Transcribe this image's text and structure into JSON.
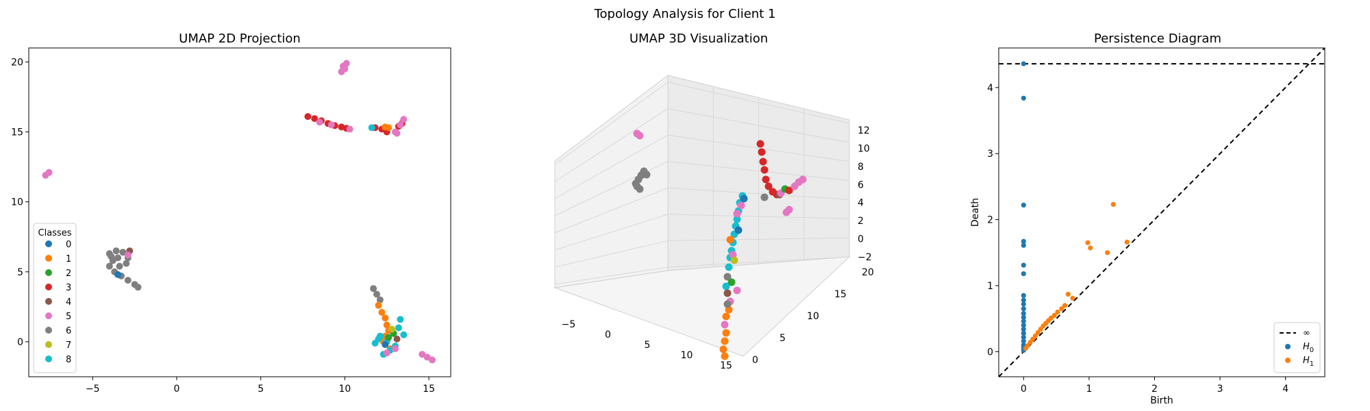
{
  "figure": {
    "suptitle": "Topology Analysis for Client 1",
    "class_colors": [
      "#1f77b4",
      "#ff7f0e",
      "#2ca02c",
      "#d62728",
      "#8c564b",
      "#e377c2",
      "#7f7f7f",
      "#bcbd22",
      "#17becf"
    ]
  },
  "chart_data": [
    {
      "type": "scatter",
      "title": "UMAP 2D Projection",
      "xlabel": "",
      "ylabel": "",
      "xlim": [
        -8.8,
        16.3
      ],
      "ylim": [
        -2.5,
        21.0
      ],
      "xticks": [
        -5,
        0,
        5,
        10,
        15
      ],
      "yticks": [
        0,
        5,
        10,
        15,
        20
      ],
      "xtick_labels": [
        "−5",
        "0",
        "5",
        "10",
        "15"
      ],
      "ytick_labels": [
        "0",
        "5",
        "10",
        "15",
        "20"
      ],
      "grid": false,
      "legend": {
        "title": "Classes",
        "placement": "lower-left",
        "labels": [
          "0",
          "1",
          "2",
          "3",
          "4",
          "5",
          "6",
          "7",
          "8"
        ]
      },
      "clusters": [
        {
          "class": 5,
          "x": [
            9.8,
            10.0,
            9.9,
            10.1
          ],
          "y": [
            19.3,
            19.5,
            19.7,
            19.9
          ]
        },
        {
          "class": 3,
          "x": [
            7.8,
            8.2,
            8.6,
            9.0,
            9.4,
            9.8,
            10.1
          ],
          "y": [
            16.1,
            15.95,
            15.8,
            15.6,
            15.45,
            15.35,
            15.25
          ]
        },
        {
          "class": 5,
          "x": [
            8.5,
            9.2,
            10.3
          ],
          "y": [
            15.7,
            15.5,
            15.2
          ]
        },
        {
          "class": 3,
          "x": [
            11.8,
            12.2,
            12.5,
            13.2,
            13.4
          ],
          "y": [
            15.3,
            15.2,
            15.0,
            15.4,
            15.6
          ]
        },
        {
          "class": 1,
          "x": [
            12.4,
            12.6
          ],
          "y": [
            15.35,
            15.3
          ]
        },
        {
          "class": 5,
          "x": [
            13.0,
            13.3,
            13.5,
            13.1
          ],
          "y": [
            15.0,
            15.5,
            15.9,
            14.9
          ]
        },
        {
          "class": 8,
          "x": [
            11.6
          ],
          "y": [
            15.3
          ]
        },
        {
          "class": 5,
          "x": [
            -7.8,
            -7.6
          ],
          "y": [
            11.9,
            12.1
          ]
        },
        {
          "class": 6,
          "x": [
            -4.0,
            -3.6,
            -3.2,
            -2.9,
            -3.0,
            -3.4,
            -3.8,
            -4.0,
            -3.7,
            -3.3,
            -2.9,
            -2.5,
            -2.3,
            -3.5,
            -3.9
          ],
          "y": [
            6.3,
            6.5,
            6.4,
            6.0,
            5.6,
            5.4,
            5.8,
            5.4,
            5.0,
            4.7,
            4.4,
            4.1,
            3.9,
            6.0,
            6.1
          ]
        },
        {
          "class": 4,
          "x": [
            -2.8
          ],
          "y": [
            6.5
          ]
        },
        {
          "class": 5,
          "x": [
            -2.9
          ],
          "y": [
            6.2
          ]
        },
        {
          "class": 0,
          "x": [
            -3.5
          ],
          "y": [
            4.8
          ]
        },
        {
          "class": 6,
          "x": [
            11.7,
            11.9,
            12.1
          ],
          "y": [
            3.8,
            3.4,
            3.0
          ]
        },
        {
          "class": 1,
          "x": [
            12.0,
            12.2,
            12.4,
            12.5,
            12.6,
            12.4,
            12.3,
            12.7
          ],
          "y": [
            2.6,
            2.1,
            1.7,
            1.2,
            0.8,
            0.4,
            0.0,
            -0.5
          ]
        },
        {
          "class": 8,
          "x": [
            11.8,
            12.1,
            12.5,
            12.9,
            13.2,
            13.5,
            12.7,
            13.0,
            12.3,
            13.3,
            12.0
          ],
          "y": [
            -0.1,
            0.4,
            0.0,
            0.6,
            1.0,
            0.5,
            -0.6,
            -0.3,
            -0.9,
            1.6,
            0.2
          ]
        },
        {
          "class": 2,
          "x": [
            12.6,
            12.9
          ],
          "y": [
            0.3,
            0.6
          ]
        },
        {
          "class": 4,
          "x": [
            13.1
          ],
          "y": [
            0.2
          ]
        },
        {
          "class": 7,
          "x": [
            12.8
          ],
          "y": [
            0.9
          ]
        },
        {
          "class": 0,
          "x": [
            12.4
          ],
          "y": [
            -0.2
          ]
        },
        {
          "class": 5,
          "x": [
            13.0,
            12.5,
            14.6,
            14.9,
            15.2
          ],
          "y": [
            -0.5,
            -0.8,
            -0.9,
            -1.1,
            -1.3
          ]
        }
      ]
    },
    {
      "type": "scatter",
      "title": "UMAP 3D Visualization",
      "xlabel": "",
      "ylabel": "",
      "zlabel": "",
      "xticks": [
        -5,
        0,
        5,
        10,
        15
      ],
      "yticks": [
        0,
        5,
        10,
        15,
        20
      ],
      "zticks": [
        -2,
        0,
        2,
        4,
        6,
        8,
        10,
        12
      ],
      "xtick_labels": [
        "−5",
        "0",
        "5",
        "10",
        "15"
      ],
      "ytick_labels": [
        "0",
        "5",
        "10",
        "15",
        "20"
      ],
      "ztick_labels": [
        "−2",
        "0",
        "2",
        "4",
        "6",
        "8",
        "10",
        "12"
      ],
      "grid": true
    },
    {
      "type": "scatter",
      "title": "Persistence Diagram",
      "xlabel": "Birth",
      "ylabel": "Death",
      "xlim": [
        -0.38,
        4.6
      ],
      "ylim": [
        -0.38,
        4.6
      ],
      "xticks": [
        0,
        1,
        2,
        3,
        4
      ],
      "yticks": [
        0,
        1,
        2,
        3,
        4
      ],
      "xtick_labels": [
        "0",
        "1",
        "2",
        "3",
        "4"
      ],
      "ytick_labels": [
        "0",
        "1",
        "2",
        "3",
        "4"
      ],
      "grid": false,
      "infinity_death": 4.36,
      "legend": {
        "placement": "lower-right",
        "entries": [
          {
            "label": "∞",
            "marker": "dashed-line"
          },
          {
            "label": "H",
            "sub": "0",
            "marker": "dot"
          },
          {
            "label": "H",
            "sub": "1",
            "marker": "dot"
          }
        ]
      },
      "series": [
        {
          "name": "H0",
          "color": "#1f77b4",
          "x": [
            0,
            0,
            0,
            0,
            0,
            0,
            0,
            0,
            0,
            0,
            0,
            0,
            0,
            0,
            0,
            0,
            0,
            0,
            0,
            0,
            0,
            0
          ],
          "y": [
            4.36,
            3.84,
            2.22,
            1.67,
            1.61,
            1.31,
            1.18,
            0.85,
            0.78,
            0.72,
            0.65,
            0.58,
            0.52,
            0.46,
            0.4,
            0.34,
            0.28,
            0.22,
            0.16,
            0.1,
            0.06,
            0.02
          ]
        },
        {
          "name": "H1",
          "color": "#ff7f0e",
          "x": [
            0.03,
            0.06,
            0.1,
            0.14,
            0.18,
            0.22,
            0.26,
            0.3,
            0.34,
            0.38,
            0.42,
            0.47,
            0.52,
            0.58,
            0.63,
            0.68,
            0.75,
            0.98,
            1.02,
            1.28,
            1.37,
            1.58
          ],
          "y": [
            0.05,
            0.09,
            0.14,
            0.19,
            0.24,
            0.29,
            0.34,
            0.39,
            0.43,
            0.47,
            0.51,
            0.55,
            0.6,
            0.65,
            0.7,
            0.87,
            0.81,
            1.65,
            1.57,
            1.5,
            2.23,
            1.66
          ]
        }
      ]
    }
  ]
}
